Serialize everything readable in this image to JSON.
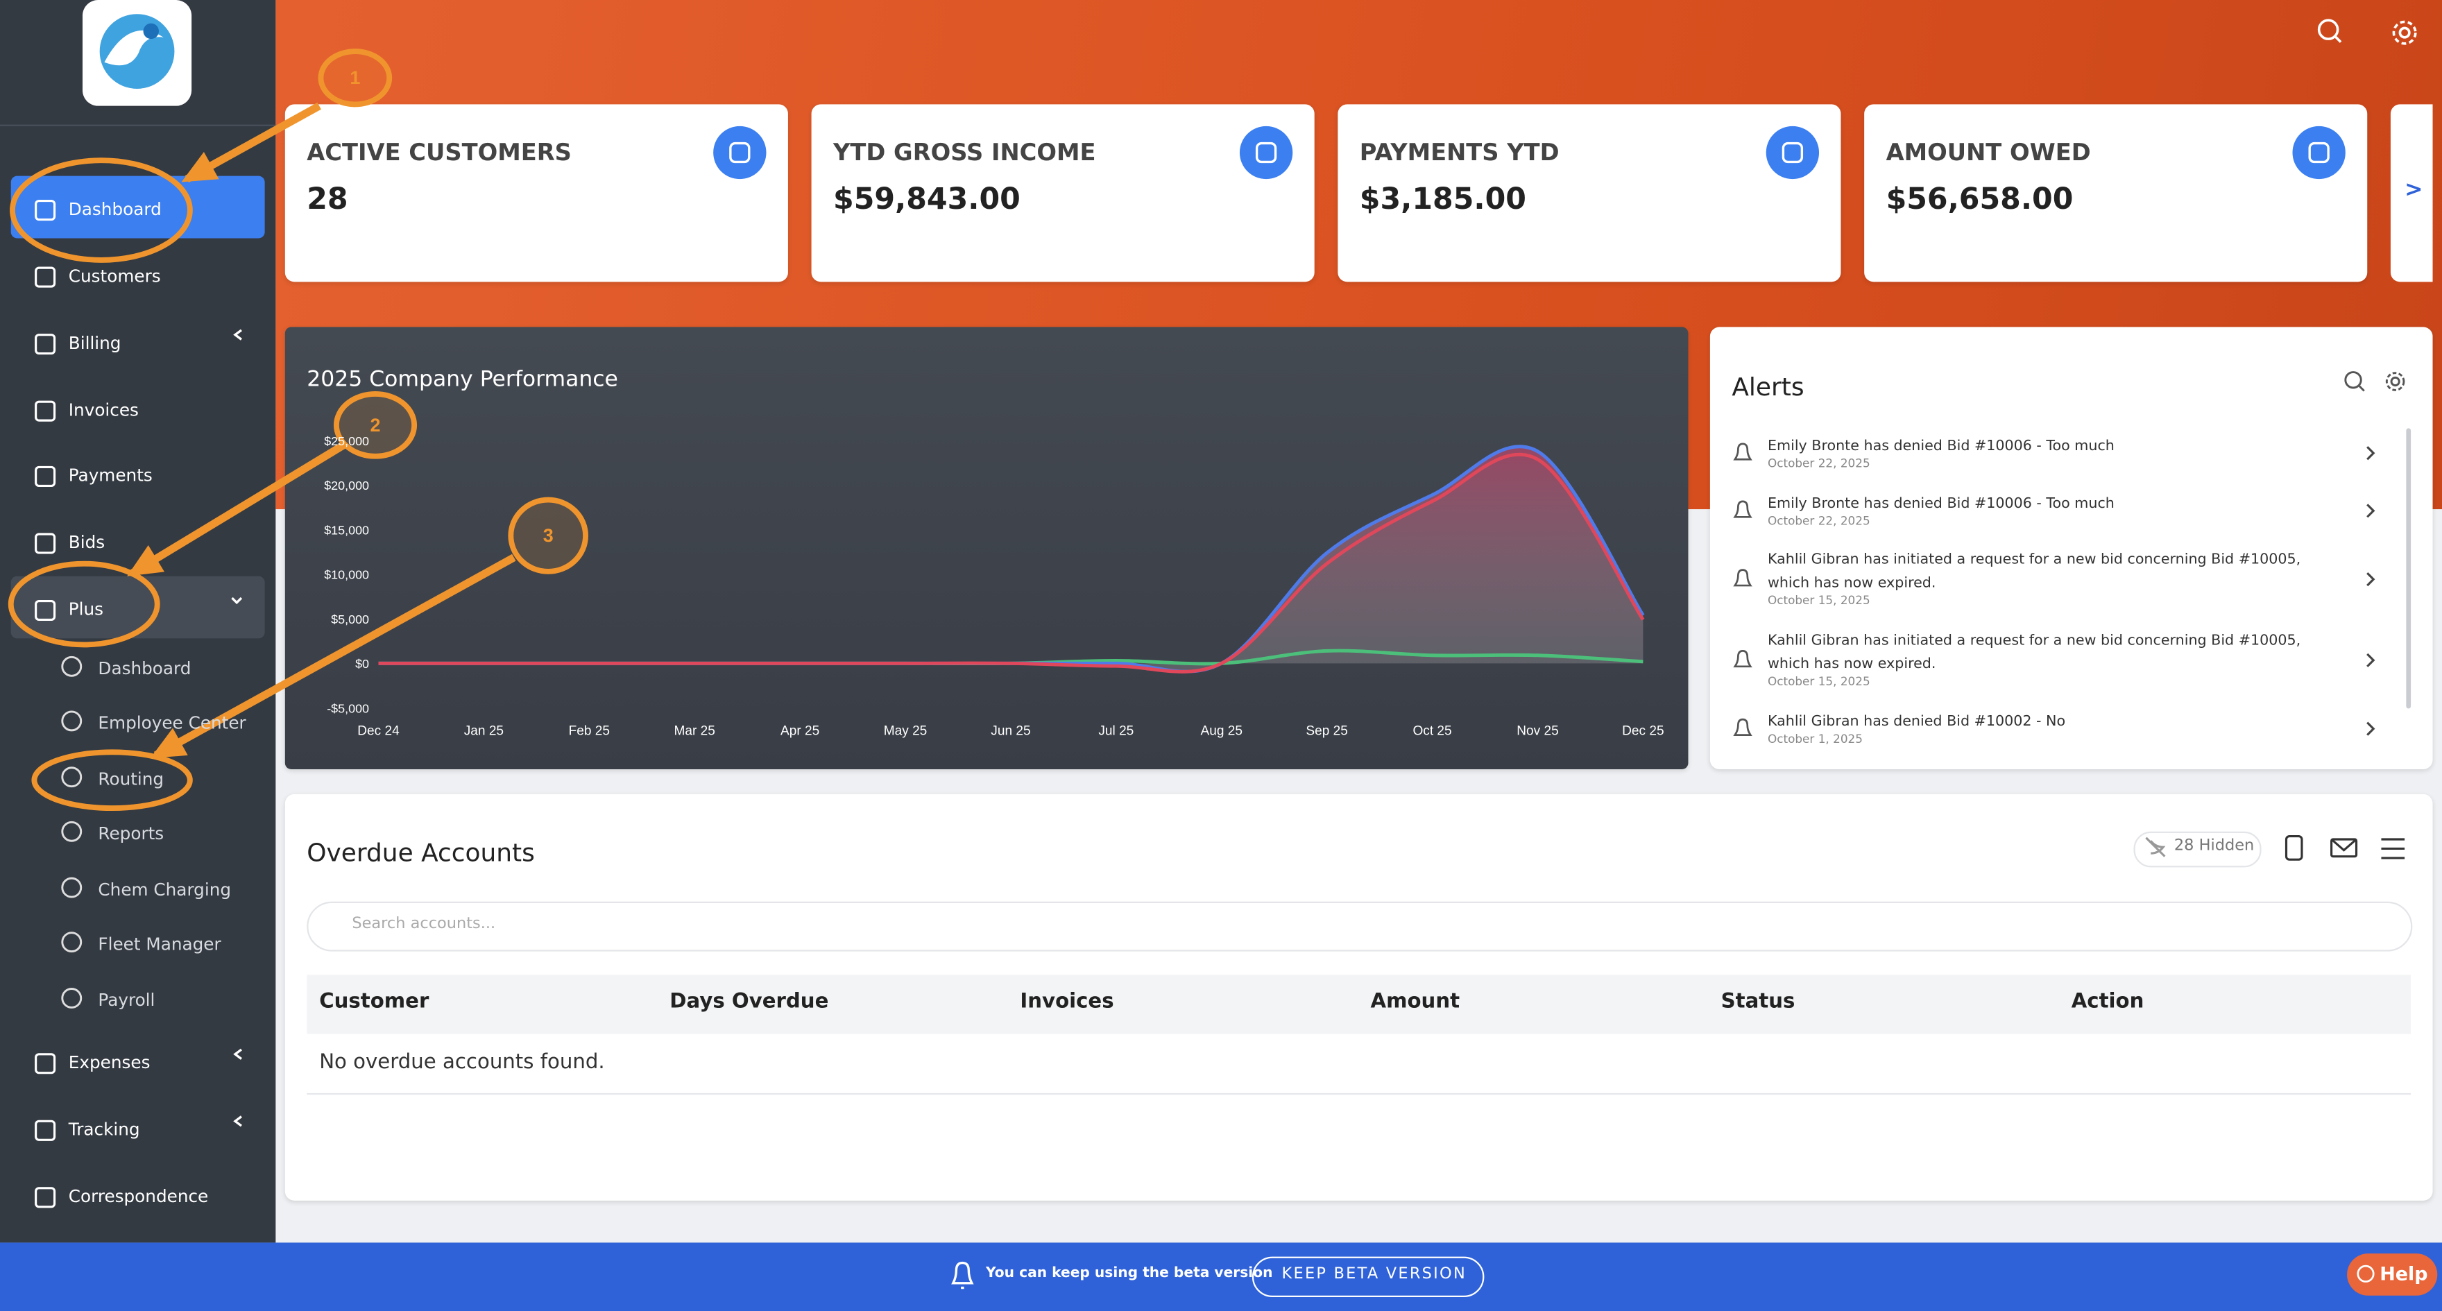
{
  "sidebar": {
    "items": [
      "Dashboard",
      "Customers",
      "Billing",
      "Invoices",
      "Payments",
      "Bids",
      "Plus"
    ],
    "plus_submenu": [
      "Dashboard",
      "Employee Center",
      "Routing",
      "Reports",
      "Chem Charging",
      "Fleet Manager",
      "Payroll"
    ],
    "items_after": [
      "Expenses",
      "Tracking",
      "Correspondence"
    ]
  },
  "stat_cards": [
    {
      "label": "ACTIVE CUSTOMERS",
      "value": "28"
    },
    {
      "label": "YTD GROSS INCOME",
      "value": "$59,843.00"
    },
    {
      "label": "PAYMENTS YTD",
      "value": "$3,185.00"
    },
    {
      "label": "AMOUNT OWED",
      "value": "$56,658.00"
    }
  ],
  "next_arrow": ">",
  "chart_data": {
    "type": "area",
    "title": "2025 Company Performance",
    "categories": [
      "Dec 24",
      "Jan 25",
      "Feb 25",
      "Mar 25",
      "Apr 25",
      "May 25",
      "Jun 25",
      "Jul 25",
      "Aug 25",
      "Sep 25",
      "Oct 25",
      "Nov 25",
      "Dec 25"
    ],
    "ylim": [
      -5000,
      25000
    ],
    "yticks": [
      {
        "value": -5000,
        "label": "-$5,000"
      },
      {
        "value": 0,
        "label": "$0"
      },
      {
        "value": 5000,
        "label": "$5,000"
      },
      {
        "value": 10000,
        "label": "$10,000"
      },
      {
        "value": 15000,
        "label": "$15,000"
      },
      {
        "value": 20000,
        "label": "$20,000"
      },
      {
        "value": 25000,
        "label": "$25,000"
      }
    ],
    "series": [
      {
        "color": "#4f7bea",
        "values": [
          0,
          0,
          0,
          0,
          0,
          0,
          0,
          0,
          0,
          12400,
          18900,
          23800,
          5400
        ]
      },
      {
        "color": "#e0475b",
        "values": [
          0,
          0,
          0,
          0,
          0,
          0,
          0,
          -300,
          0,
          11200,
          18200,
          22900,
          4900
        ]
      },
      {
        "color": "#4cc07a",
        "values": [
          0,
          0,
          0,
          0,
          0,
          0,
          0,
          300,
          0,
          1400,
          900,
          900,
          200
        ]
      }
    ]
  },
  "alerts": {
    "title": "Alerts",
    "items": [
      {
        "text": "Emily Bronte has denied Bid #10006 - Too much",
        "date": "October 22, 2025"
      },
      {
        "text": "Emily Bronte has denied Bid #10006 - Too much",
        "date": "October 22, 2025"
      },
      {
        "text": "Kahlil Gibran has initiated a request for a new bid concerning Bid #10005, which has now expired.",
        "date": "October 15, 2025"
      },
      {
        "text": "Kahlil Gibran has initiated a request for a new bid concerning Bid #10005, which has now expired.",
        "date": "October 15, 2025"
      },
      {
        "text": "Kahlil Gibran has denied Bid #10002 - No",
        "date": "October 1, 2025"
      }
    ]
  },
  "overdue": {
    "title": "Overdue Accounts",
    "hidden": "28 Hidden",
    "search_placeholder": "Search accounts...",
    "columns": [
      "Customer",
      "Days Overdue",
      "Invoices",
      "Amount",
      "Status",
      "Action"
    ],
    "empty": "No overdue accounts found."
  },
  "banner": {
    "text": "You can keep using the beta version",
    "button": "KEEP BETA VERSION",
    "help": "Help"
  },
  "annotations": [
    "1",
    "2",
    "3"
  ]
}
